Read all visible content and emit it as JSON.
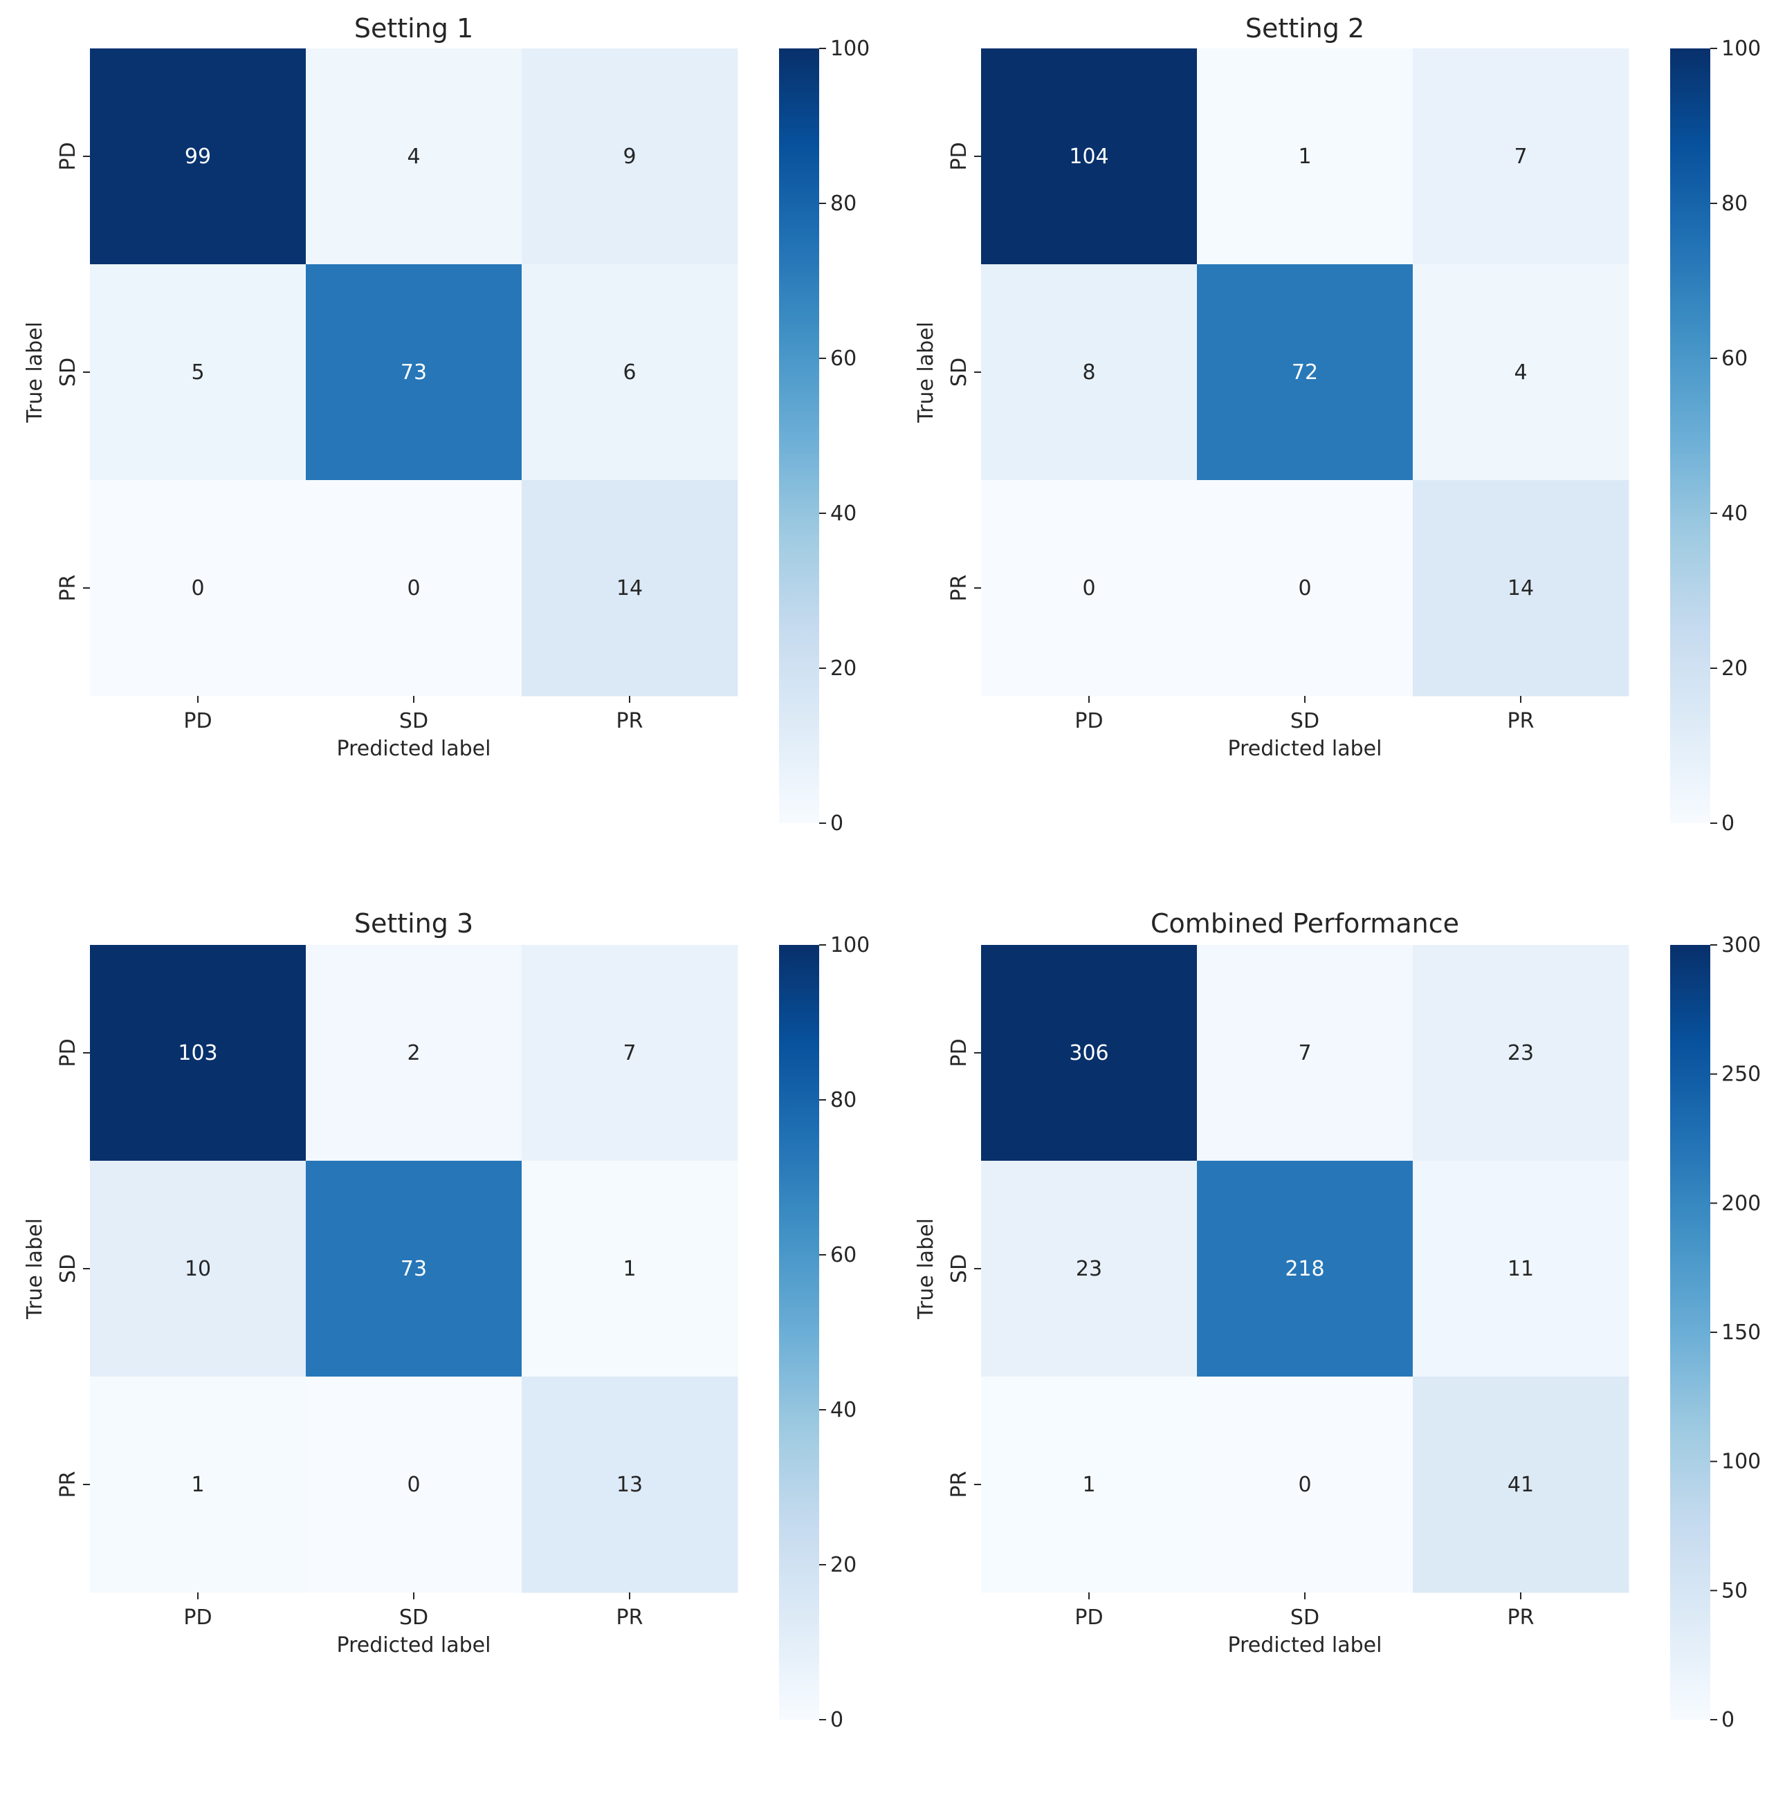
{
  "chart_data": [
    {
      "type": "heatmap",
      "title": "Setting 1",
      "xlabel": "Predicted label",
      "ylabel": "True label",
      "x_categories": [
        "PD",
        "SD",
        "PR"
      ],
      "y_categories": [
        "PD",
        "SD",
        "PR"
      ],
      "matrix": [
        [
          99,
          4,
          9
        ],
        [
          5,
          73,
          6
        ],
        [
          0,
          0,
          14
        ]
      ],
      "colorbar": {
        "min": 0,
        "max": 100,
        "ticks": [
          "0",
          "20",
          "40",
          "60",
          "80",
          "100"
        ]
      }
    },
    {
      "type": "heatmap",
      "title": "Setting 2",
      "xlabel": "Predicted label",
      "ylabel": "True label",
      "x_categories": [
        "PD",
        "SD",
        "PR"
      ],
      "y_categories": [
        "PD",
        "SD",
        "PR"
      ],
      "matrix": [
        [
          104,
          1,
          7
        ],
        [
          8,
          72,
          4
        ],
        [
          0,
          0,
          14
        ]
      ],
      "colorbar": {
        "min": 0,
        "max": 100,
        "ticks": [
          "0",
          "20",
          "40",
          "60",
          "80",
          "100"
        ]
      }
    },
    {
      "type": "heatmap",
      "title": "Setting 3",
      "xlabel": "Predicted label",
      "ylabel": "True label",
      "x_categories": [
        "PD",
        "SD",
        "PR"
      ],
      "y_categories": [
        "PD",
        "SD",
        "PR"
      ],
      "matrix": [
        [
          103,
          2,
          7
        ],
        [
          10,
          73,
          1
        ],
        [
          1,
          0,
          13
        ]
      ],
      "colorbar": {
        "min": 0,
        "max": 100,
        "ticks": [
          "0",
          "20",
          "40",
          "60",
          "80",
          "100"
        ]
      }
    },
    {
      "type": "heatmap",
      "title": "Combined Performance",
      "xlabel": "Predicted label",
      "ylabel": "True label",
      "x_categories": [
        "PD",
        "SD",
        "PR"
      ],
      "y_categories": [
        "PD",
        "SD",
        "PR"
      ],
      "matrix": [
        [
          306,
          7,
          23
        ],
        [
          23,
          218,
          11
        ],
        [
          1,
          0,
          41
        ]
      ],
      "colorbar": {
        "min": 0,
        "max": 300,
        "ticks": [
          "0",
          "50",
          "100",
          "150",
          "200",
          "250",
          "300"
        ]
      }
    }
  ]
}
